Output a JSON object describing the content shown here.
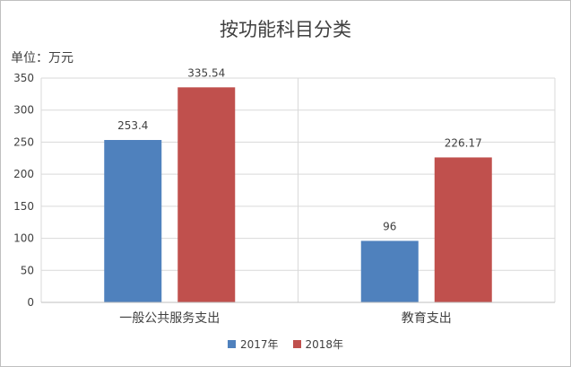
{
  "chart_data": {
    "type": "bar",
    "title": "按功能科目分类",
    "unit": "单位：万元",
    "categories": [
      "一般公共服务支出",
      "教育支出"
    ],
    "series": [
      {
        "name": "2017年",
        "values": [
          253.4,
          96
        ],
        "labels": [
          "253.4",
          "96"
        ],
        "color": "#4f81bd"
      },
      {
        "name": "2018年",
        "values": [
          335.54,
          226.17
        ],
        "labels": [
          "335.54",
          "226.17"
        ],
        "color": "#c0504d"
      }
    ],
    "ylim": [
      0,
      350
    ],
    "yticks": [
      0,
      50,
      100,
      150,
      200,
      250,
      300,
      350
    ],
    "grid": true,
    "legend": "bottom"
  }
}
